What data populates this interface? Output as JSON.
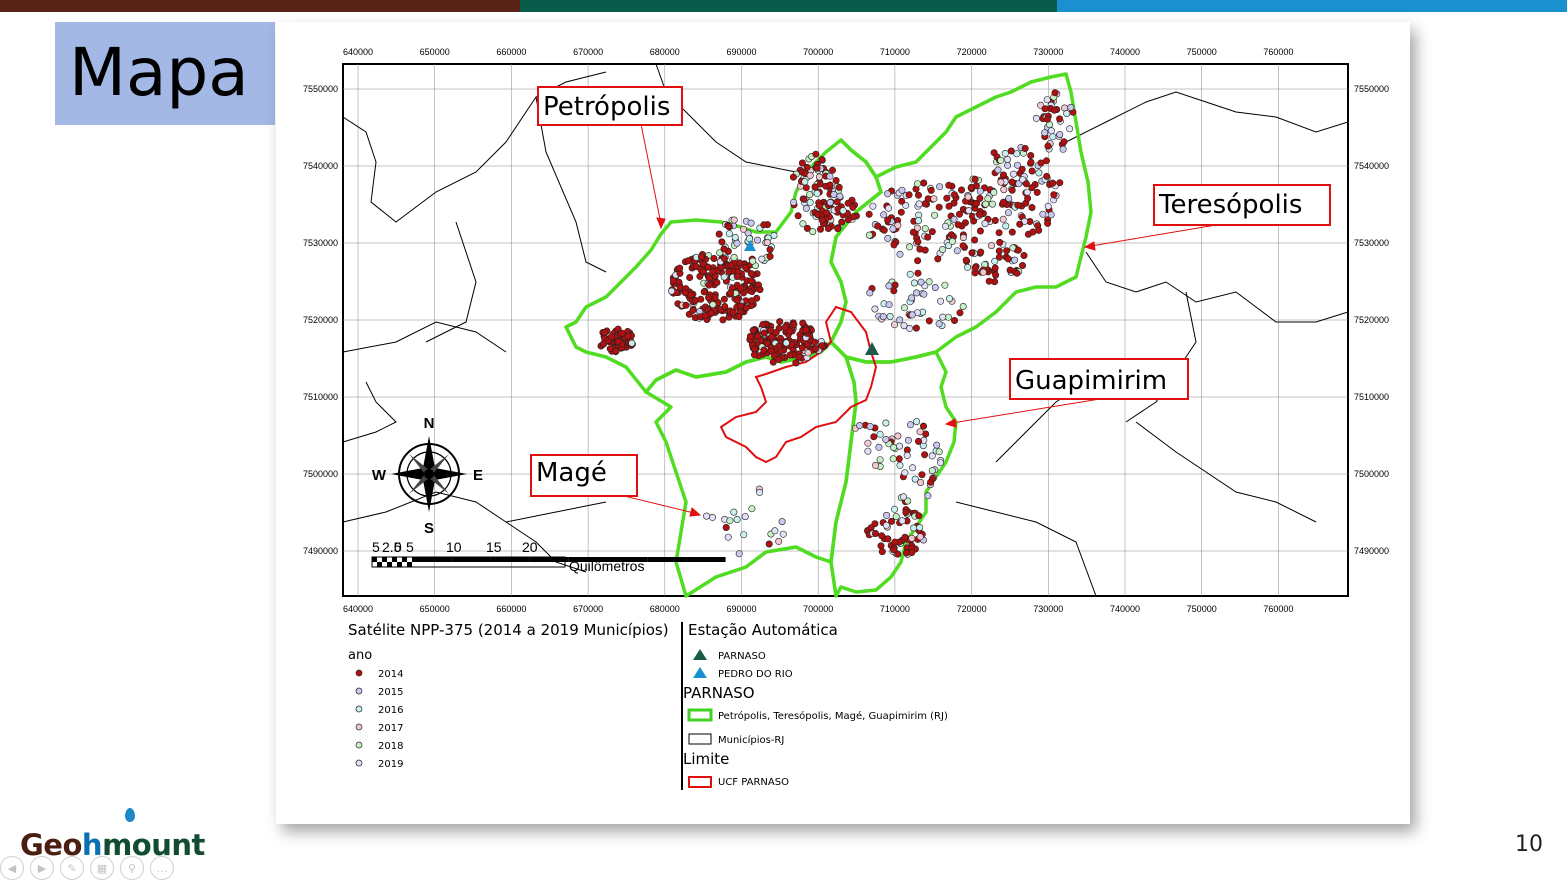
{
  "slide": {
    "title": "Mapa",
    "page_number": "10",
    "top_bar_colors": [
      "#5a2318",
      "#0a5c4a",
      "#1a90d0"
    ]
  },
  "logo": {
    "part1": "Geo",
    "part2": "h",
    "part3": "mount"
  },
  "map": {
    "x_ticks": [
      "640000",
      "650000",
      "660000",
      "670000",
      "680000",
      "690000",
      "700000",
      "710000",
      "720000",
      "730000",
      "740000",
      "750000",
      "760000"
    ],
    "y_ticks": [
      "7550000",
      "7540000",
      "7530000",
      "7520000",
      "7510000",
      "7500000",
      "7490000"
    ],
    "compass": {
      "n": "N",
      "s": "S",
      "e": "E",
      "w": "W"
    },
    "scale": {
      "labels": [
        "5",
        "2.5",
        "0",
        "5",
        "10",
        "15",
        "20"
      ],
      "unit": "Quilômetros"
    }
  },
  "callouts": {
    "petropolis": "Petrópolis",
    "teresopolis": "Teresópolis",
    "guapimirim": "Guapimirim",
    "mage": "Magé"
  },
  "legend": {
    "satellite_title": "Satélite NPP-375  (2014 a 2019  Municípios)",
    "year_heading": "ano",
    "years": [
      {
        "label": "2014",
        "color": "#b01010"
      },
      {
        "label": "2015",
        "color": "#c8c8f0"
      },
      {
        "label": "2016",
        "color": "#c8f0f0"
      },
      {
        "label": "2017",
        "color": "#f0c8d0"
      },
      {
        "label": "2018",
        "color": "#c8f0c8"
      },
      {
        "label": "2019",
        "color": "#e0e0f8"
      }
    ],
    "station_title": "Estação Automática",
    "stations": [
      {
        "label": "PARNASO",
        "color": "#1a5c4a"
      },
      {
        "label": "PEDRO DO RIO",
        "color": "#1a90d0"
      }
    ],
    "parnaso_heading": "PARNASO",
    "parnaso_items": [
      {
        "label": "Petrópolis, Teresópolis, Magé, Guapimirim (RJ)",
        "color": "#40d020"
      },
      {
        "label": "Municípios-RJ",
        "color": "#000000"
      }
    ],
    "limite_heading": "Limite",
    "limite_items": [
      {
        "label": "UCF PARNASO",
        "color": "#e01010"
      }
    ]
  }
}
